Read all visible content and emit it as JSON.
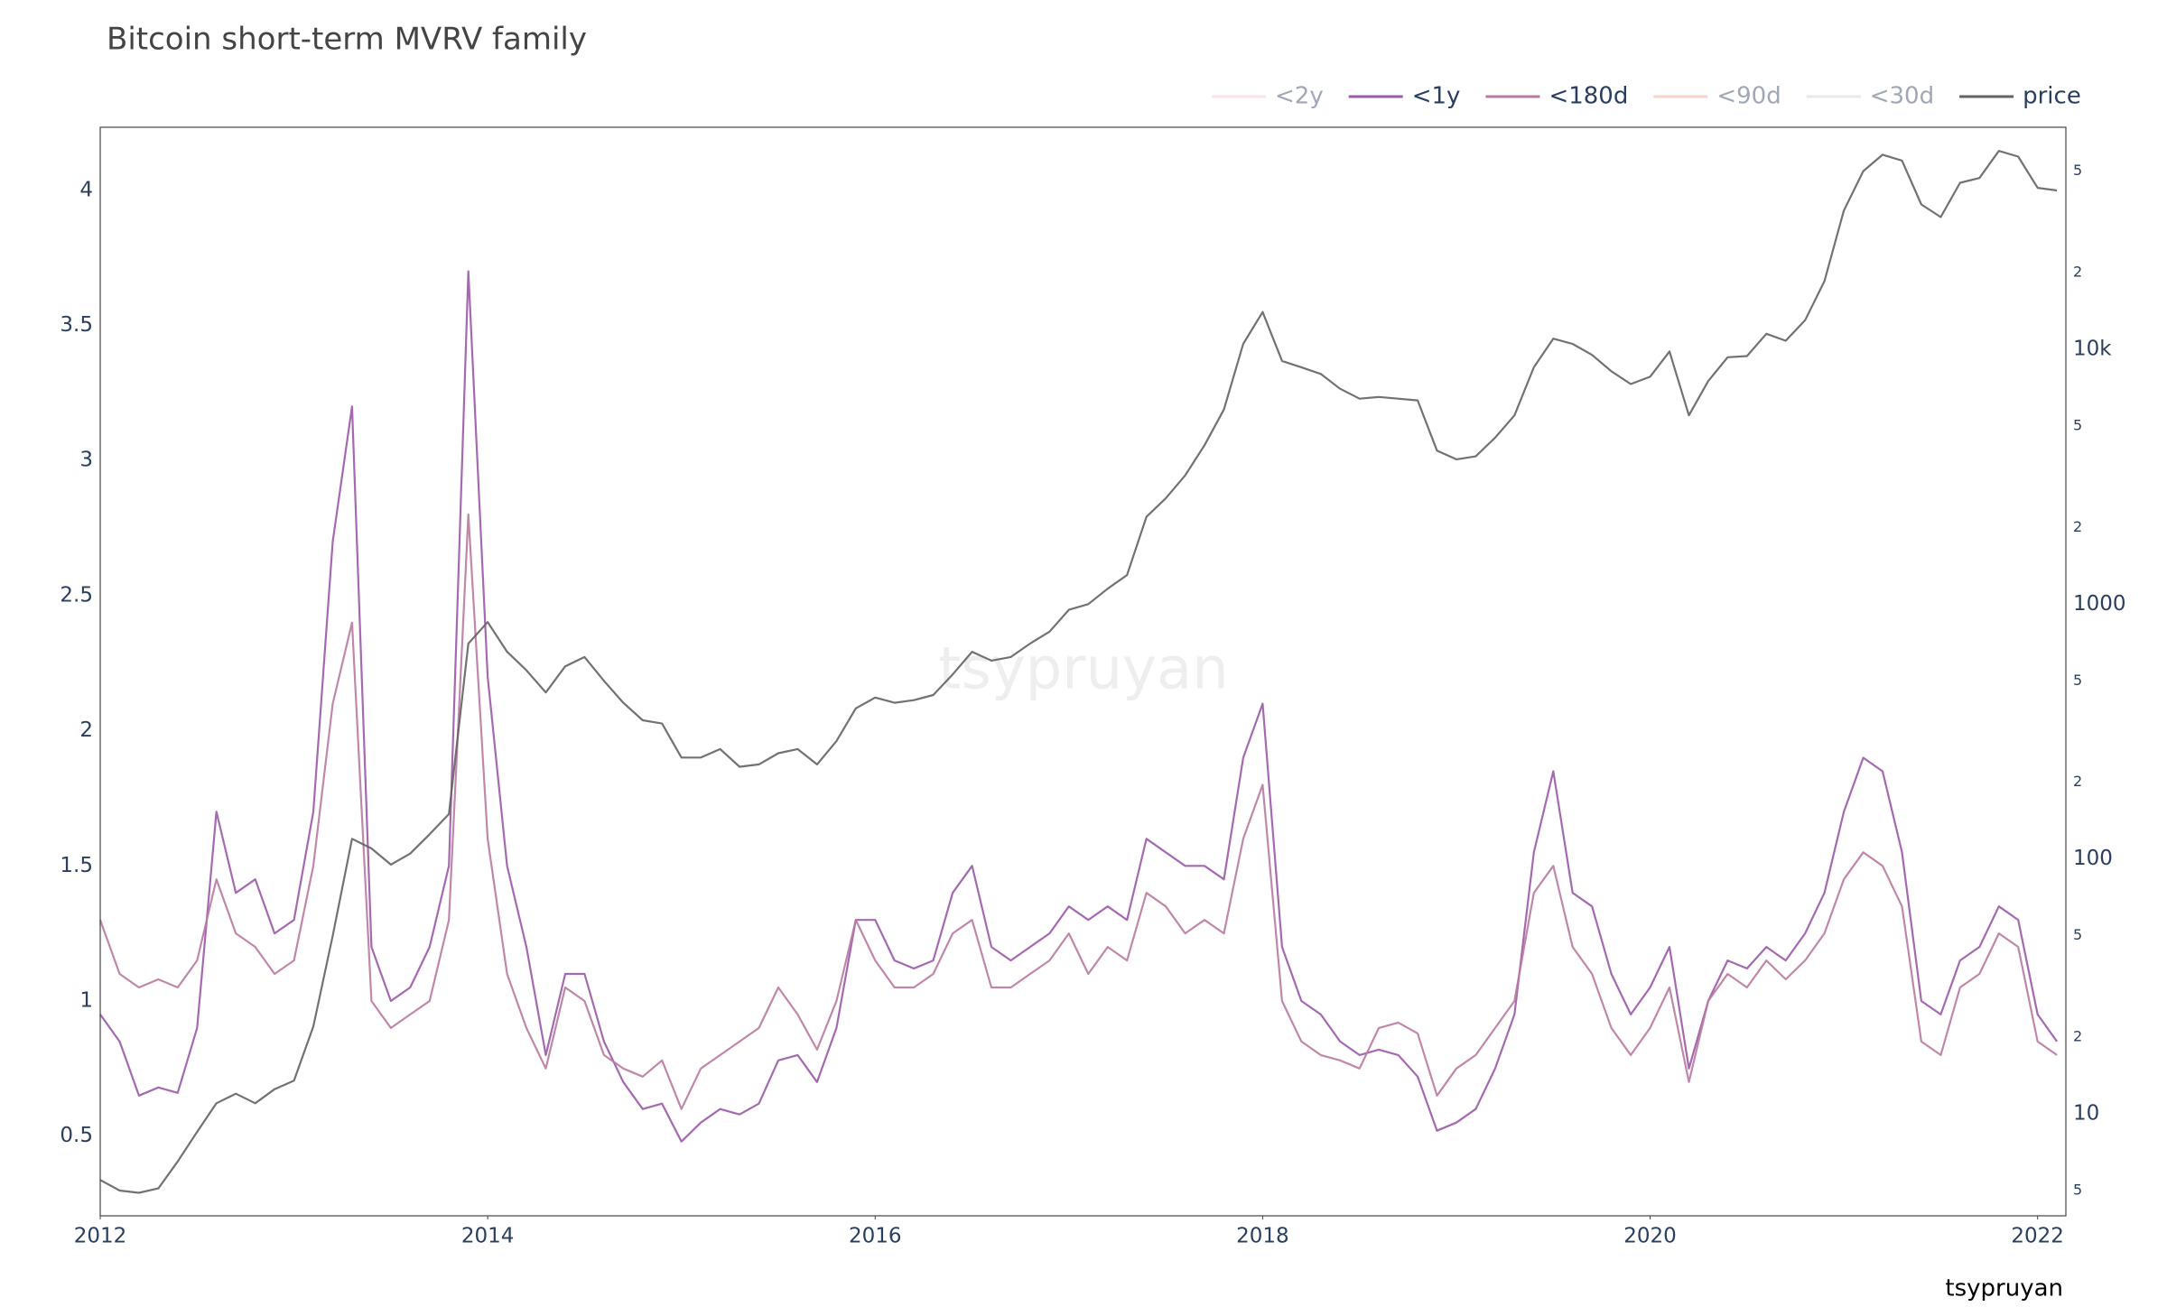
{
  "chart_data": {
    "type": "line",
    "title": "Bitcoin short-term MVRV family",
    "watermark": "tsypruyan",
    "annotation": "tsypruyan",
    "x": [
      2012,
      2012.1,
      2012.2,
      2012.3,
      2012.4,
      2012.5,
      2012.6,
      2012.7,
      2012.8,
      2012.9,
      2013,
      2013.1,
      2013.2,
      2013.3,
      2013.4,
      2013.5,
      2013.6,
      2013.7,
      2013.8,
      2013.9,
      2014,
      2014.1,
      2014.2,
      2014.3,
      2014.4,
      2014.5,
      2014.6,
      2014.7,
      2014.8,
      2014.9,
      2015,
      2015.1,
      2015.2,
      2015.3,
      2015.4,
      2015.5,
      2015.6,
      2015.7,
      2015.8,
      2015.9,
      2016,
      2016.1,
      2016.2,
      2016.3,
      2016.4,
      2016.5,
      2016.6,
      2016.7,
      2016.8,
      2016.9,
      2017,
      2017.1,
      2017.2,
      2017.3,
      2017.4,
      2017.5,
      2017.6,
      2017.7,
      2017.8,
      2017.9,
      2018,
      2018.1,
      2018.2,
      2018.3,
      2018.4,
      2018.5,
      2018.6,
      2018.7,
      2018.8,
      2018.9,
      2019,
      2019.1,
      2019.2,
      2019.3,
      2019.4,
      2019.5,
      2019.6,
      2019.7,
      2019.8,
      2019.9,
      2020,
      2020.1,
      2020.2,
      2020.3,
      2020.4,
      2020.5,
      2020.6,
      2020.7,
      2020.8,
      2020.9,
      2021,
      2021.1,
      2021.2,
      2021.3,
      2021.4,
      2021.5,
      2021.6,
      2021.7,
      2021.8,
      2021.9,
      2022,
      2022.1
    ],
    "xlim": [
      2012,
      2022.146
    ],
    "xticks": [
      2012,
      2014,
      2016,
      2018,
      2020,
      2022
    ],
    "ylim": [
      0.205,
      4.233
    ],
    "yticks": [
      0.5,
      1,
      1.5,
      2,
      2.5,
      3,
      3.5,
      4
    ],
    "y2lim": [
      3.98,
      74300
    ],
    "y2log": true,
    "y2ticks": [
      5,
      10,
      {
        "value": 20,
        "label": "2"
      },
      {
        "value": 50,
        "label": "5"
      },
      100,
      {
        "value": 200,
        "label": "2"
      },
      {
        "value": 500,
        "label": "5"
      },
      1000,
      {
        "value": 2000,
        "label": "2"
      },
      {
        "value": 5000,
        "label": "5"
      },
      {
        "value": 10000,
        "label": "10k"
      },
      {
        "value": 20000,
        "label": "2"
      },
      {
        "value": 50000,
        "label": "5"
      }
    ],
    "grid": false,
    "legend": "top-right",
    "series": [
      {
        "name": "<2y",
        "color": "#f4c6d6",
        "visible": "legendonly"
      },
      {
        "name": "<1y",
        "color": "#9b59a8",
        "values": [
          0.95,
          0.85,
          0.65,
          0.68,
          0.66,
          0.9,
          1.7,
          1.4,
          1.45,
          1.25,
          1.3,
          1.7,
          2.7,
          3.2,
          1.2,
          1.0,
          1.05,
          1.2,
          1.5,
          3.7,
          2.2,
          1.5,
          1.2,
          0.8,
          1.1,
          1.1,
          0.85,
          0.7,
          0.6,
          0.62,
          0.48,
          0.55,
          0.6,
          0.58,
          0.62,
          0.78,
          0.8,
          0.7,
          0.9,
          1.3,
          1.3,
          1.15,
          1.12,
          1.15,
          1.4,
          1.5,
          1.2,
          1.15,
          1.2,
          1.25,
          1.35,
          1.3,
          1.35,
          1.3,
          1.6,
          1.55,
          1.5,
          1.5,
          1.45,
          1.9,
          2.1,
          1.2,
          1.0,
          0.95,
          0.85,
          0.8,
          0.82,
          0.8,
          0.72,
          0.52,
          0.55,
          0.6,
          0.75,
          0.95,
          1.55,
          1.85,
          1.4,
          1.35,
          1.1,
          0.95,
          1.05,
          1.2,
          0.75,
          1.0,
          1.15,
          1.12,
          1.2,
          1.15,
          1.25,
          1.4,
          1.7,
          1.9,
          1.85,
          1.55,
          1.0,
          0.95,
          1.15,
          1.2,
          1.35,
          1.3,
          0.95,
          0.85
        ]
      },
      {
        "name": "<180d",
        "color": "#b97aa0",
        "values": [
          1.3,
          1.1,
          1.05,
          1.08,
          1.05,
          1.15,
          1.45,
          1.25,
          1.2,
          1.1,
          1.15,
          1.5,
          2.1,
          2.4,
          1.0,
          0.9,
          0.95,
          1.0,
          1.3,
          2.8,
          1.6,
          1.1,
          0.9,
          0.75,
          1.05,
          1.0,
          0.8,
          0.75,
          0.72,
          0.78,
          0.6,
          0.75,
          0.8,
          0.85,
          0.9,
          1.05,
          0.95,
          0.82,
          1.0,
          1.3,
          1.15,
          1.05,
          1.05,
          1.1,
          1.25,
          1.3,
          1.05,
          1.05,
          1.1,
          1.15,
          1.25,
          1.1,
          1.2,
          1.15,
          1.4,
          1.35,
          1.25,
          1.3,
          1.25,
          1.6,
          1.8,
          1.0,
          0.85,
          0.8,
          0.78,
          0.75,
          0.9,
          0.92,
          0.88,
          0.65,
          0.75,
          0.8,
          0.9,
          1.0,
          1.4,
          1.5,
          1.2,
          1.1,
          0.9,
          0.8,
          0.9,
          1.05,
          0.7,
          1.0,
          1.1,
          1.05,
          1.15,
          1.08,
          1.15,
          1.25,
          1.45,
          1.55,
          1.5,
          1.35,
          0.85,
          0.8,
          1.05,
          1.1,
          1.25,
          1.2,
          0.85,
          0.8
        ]
      },
      {
        "name": "<90d",
        "color": "#f2a89e",
        "visible": "legendonly"
      },
      {
        "name": "<30d",
        "color": "#d0d3dc",
        "visible": "legendonly"
      },
      {
        "name": "price",
        "color": "#636363",
        "axis": "y2",
        "values": [
          5.5,
          5,
          4.9,
          5.1,
          6.5,
          8.5,
          11,
          12,
          11,
          12.5,
          13.5,
          22,
          50,
          120,
          110,
          95,
          105,
          125,
          150,
          700,
          850,
          650,
          550,
          450,
          570,
          620,
          500,
          410,
          350,
          340,
          250,
          250,
          270,
          230,
          235,
          260,
          270,
          235,
          290,
          390,
          430,
          410,
          420,
          440,
          530,
          650,
          600,
          620,
          700,
          780,
          950,
          1000,
          1150,
          1300,
          2200,
          2600,
          3200,
          4200,
          5800,
          10500,
          14000,
          9000,
          8500,
          8000,
          7000,
          6400,
          6500,
          6400,
          6300,
          4000,
          3700,
          3800,
          4500,
          5500,
          8500,
          11000,
          10500,
          9500,
          8200,
          7300,
          7800,
          9800,
          5500,
          7500,
          9300,
          9400,
          11500,
          10800,
          13000,
          18500,
          35000,
          50000,
          58000,
          55000,
          37000,
          33000,
          45000,
          47000,
          60000,
          57000,
          43000,
          42000
        ]
      }
    ]
  }
}
